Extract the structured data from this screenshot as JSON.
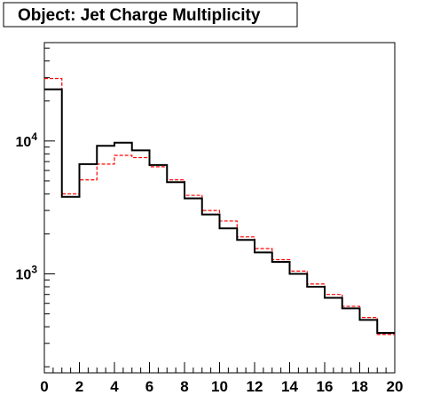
{
  "chart": {
    "title": "Object: Jet Charge Multiplicity"
  },
  "chart_data": {
    "type": "line",
    "step": true,
    "title": "Object: Jet Charge Multiplicity",
    "xlabel": "",
    "ylabel": "",
    "xlim": [
      0,
      20
    ],
    "ylim": [
      180,
      55000
    ],
    "y_scale": "log",
    "bin_edges": [
      0,
      1,
      2,
      3,
      4,
      5,
      6,
      7,
      8,
      9,
      10,
      11,
      12,
      13,
      14,
      15,
      16,
      17,
      18,
      19,
      20
    ],
    "x_ticks": [
      0,
      2,
      4,
      6,
      8,
      10,
      12,
      14,
      16,
      18,
      20
    ],
    "x_tick_labels": [
      "0",
      "2",
      "4",
      "6",
      "8",
      "10",
      "12",
      "14",
      "16",
      "18",
      "20"
    ],
    "y_ticks": [
      1000,
      10000
    ],
    "y_tick_labels": [
      {
        "base": "10",
        "exp": "3"
      },
      {
        "base": "10",
        "exp": "4"
      }
    ],
    "grid": false,
    "legend": null,
    "series": [
      {
        "style": "solid",
        "color": "#000000",
        "values": [
          24500,
          3800,
          6700,
          9200,
          9700,
          8500,
          6600,
          4900,
          3700,
          2800,
          2200,
          1800,
          1450,
          1230,
          1000,
          800,
          660,
          550,
          450,
          360
        ]
      },
      {
        "style": "dashed",
        "color": "#ff0000",
        "values": [
          29500,
          4000,
          5100,
          6700,
          7800,
          7500,
          6400,
          5100,
          3900,
          3000,
          2500,
          1900,
          1550,
          1280,
          1050,
          840,
          700,
          570,
          470,
          350
        ]
      }
    ]
  }
}
